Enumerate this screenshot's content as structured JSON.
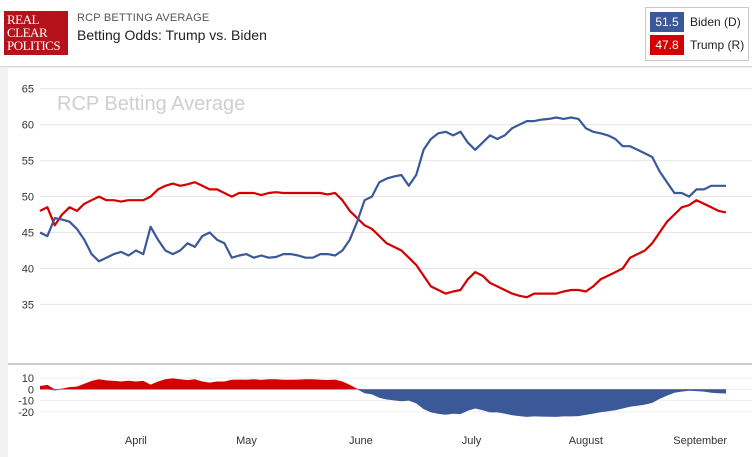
{
  "header": {
    "logo_lines": [
      "REAL",
      "CLEAR",
      "POLITICS"
    ],
    "kicker": "RCP BETTING AVERAGE",
    "title": "Betting Odds: Trump vs. Biden"
  },
  "legend": [
    {
      "value": "51.5",
      "name": "Biden (D)",
      "color": "#3b5998"
    },
    {
      "value": "47.8",
      "name": "Trump (R)",
      "color": "#d40000"
    }
  ],
  "chart_data": {
    "type": "line",
    "watermark": "RCP Betting Average",
    "y_ticks": [
      "65",
      "60",
      "55",
      "50",
      "45",
      "40",
      "35"
    ],
    "ylim": [
      32,
      66
    ],
    "diff_ticks": [
      "10",
      "0",
      "-10",
      "-20"
    ],
    "diff_ylim": [
      -25,
      15
    ],
    "x_labels": [
      "April",
      "May",
      "June",
      "July",
      "August",
      "September"
    ],
    "x_label_days": [
      27,
      57,
      88,
      118,
      149,
      180
    ],
    "xlim": [
      1,
      187
    ],
    "series": [
      {
        "name": "Biden (D)",
        "color": "#3b5998",
        "x": [
          1,
          3,
          5,
          7,
          9,
          11,
          13,
          15,
          17,
          19,
          21,
          23,
          25,
          27,
          29,
          31,
          33,
          35,
          37,
          39,
          41,
          43,
          45,
          47,
          49,
          51,
          53,
          55,
          57,
          59,
          61,
          63,
          65,
          67,
          69,
          71,
          73,
          75,
          77,
          79,
          81,
          83,
          85,
          87,
          89,
          91,
          93,
          95,
          97,
          99,
          101,
          103,
          105,
          107,
          109,
          111,
          113,
          115,
          117,
          119,
          121,
          123,
          125,
          127,
          129,
          131,
          133,
          135,
          137,
          139,
          141,
          143,
          145,
          147,
          149,
          151,
          153,
          155,
          157,
          159,
          161,
          163,
          165,
          167,
          169,
          171,
          173,
          175,
          177,
          179,
          181,
          183,
          185,
          187
        ],
        "values": [
          45.0,
          44.5,
          47.0,
          46.8,
          46.5,
          45.5,
          44.0,
          42.0,
          41.0,
          41.5,
          42.0,
          42.3,
          41.8,
          42.5,
          42.0,
          45.8,
          44.0,
          42.5,
          42.0,
          42.5,
          43.5,
          43.0,
          44.5,
          45.0,
          44.0,
          43.5,
          41.5,
          41.8,
          42.0,
          41.5,
          41.8,
          41.5,
          41.6,
          42.0,
          42.0,
          41.8,
          41.5,
          41.5,
          42.0,
          42.0,
          41.8,
          42.5,
          44.0,
          46.5,
          49.5,
          50.0,
          52.0,
          52.5,
          52.8,
          53.0,
          51.5,
          53.0,
          56.5,
          58.0,
          58.8,
          59.0,
          58.5,
          59.0,
          57.5,
          56.5,
          57.5,
          58.5,
          58.0,
          58.5,
          59.5,
          60.0,
          60.5,
          60.5,
          60.7,
          60.8,
          61.0,
          60.8,
          61.0,
          60.8,
          59.5,
          59.0,
          58.8,
          58.5,
          58.0,
          57.0,
          57.0,
          56.5,
          56.0,
          55.5,
          53.5,
          52.0,
          50.5,
          50.5,
          50.0,
          51.0,
          51.0,
          51.5,
          51.5,
          51.5
        ]
      },
      {
        "name": "Trump (R)",
        "color": "#d40000",
        "x": [
          1,
          3,
          5,
          7,
          9,
          11,
          13,
          15,
          17,
          19,
          21,
          23,
          25,
          27,
          29,
          31,
          33,
          35,
          37,
          39,
          41,
          43,
          45,
          47,
          49,
          51,
          53,
          55,
          57,
          59,
          61,
          63,
          65,
          67,
          69,
          71,
          73,
          75,
          77,
          79,
          81,
          83,
          85,
          87,
          89,
          91,
          93,
          95,
          97,
          99,
          101,
          103,
          105,
          107,
          109,
          111,
          113,
          115,
          117,
          119,
          121,
          123,
          125,
          127,
          129,
          131,
          133,
          135,
          137,
          139,
          141,
          143,
          145,
          147,
          149,
          151,
          153,
          155,
          157,
          159,
          161,
          163,
          165,
          167,
          169,
          171,
          173,
          175,
          177,
          179,
          181,
          183,
          185,
          187
        ],
        "values": [
          48.0,
          48.5,
          46.0,
          47.5,
          48.5,
          48.0,
          49.0,
          49.5,
          50.0,
          49.5,
          49.5,
          49.3,
          49.5,
          49.5,
          49.5,
          50.0,
          51.0,
          51.5,
          51.8,
          51.5,
          51.7,
          52.0,
          51.5,
          51.0,
          51.0,
          50.5,
          50.0,
          50.5,
          50.5,
          50.5,
          50.2,
          50.5,
          50.6,
          50.5,
          50.5,
          50.5,
          50.5,
          50.5,
          50.5,
          50.3,
          50.5,
          49.5,
          48.0,
          47.0,
          46.0,
          45.5,
          44.5,
          43.5,
          43.0,
          42.5,
          41.5,
          40.5,
          39.0,
          37.5,
          37.0,
          36.5,
          36.8,
          37.0,
          38.5,
          39.5,
          39.0,
          38.0,
          37.5,
          37.0,
          36.5,
          36.2,
          36.0,
          36.5,
          36.5,
          36.5,
          36.5,
          36.8,
          37.0,
          37.0,
          36.8,
          37.5,
          38.5,
          39.0,
          39.5,
          40.0,
          41.5,
          42.0,
          42.5,
          43.5,
          45.0,
          46.5,
          47.5,
          48.5,
          48.8,
          49.5,
          49.0,
          48.5,
          48.0,
          47.8
        ]
      }
    ]
  }
}
